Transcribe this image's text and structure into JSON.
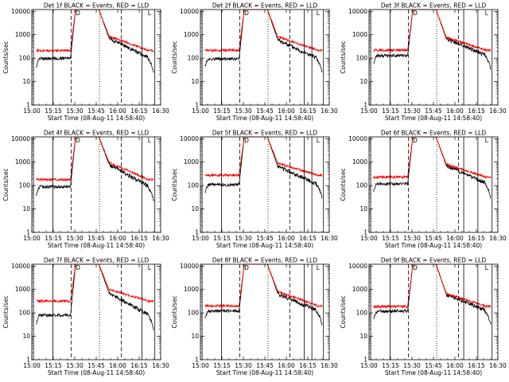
{
  "chart_data": {
    "type": "line",
    "grid": false,
    "x_ticks": [
      "15:00",
      "15:15",
      "15:30",
      "15:45",
      "16:00",
      "16:15",
      "16:30"
    ],
    "x_range_min": [
      0,
      100
    ],
    "y_scale": "log",
    "y_range": [
      1,
      12000
    ],
    "y_ticks": [
      "1",
      "10",
      "100",
      "1000",
      "10000"
    ],
    "ylabel": "Counts/sec",
    "xlabel": "Start Time (08-Aug-11 14:58:40)",
    "flag_letters": [
      "D",
      "L"
    ],
    "solid_lines_min": [
      1.3,
      16.3,
      95.5
    ],
    "dashed_lines_min": [
      30.5,
      69.5
    ],
    "dotted_lines_min": [
      52.5
    ],
    "colors": {
      "events": "#000000",
      "lld": "#ff0000"
    },
    "panels": [
      {
        "title": "Det 1f BLACK = Events, RED = LLD",
        "solid_extra": [
          85.5
        ],
        "base_events": 100,
        "base_lld": 210,
        "post_events": 450,
        "post_lld": 550,
        "peak": 12000
      },
      {
        "title": "Det 2f BLACK = Events, RED = LLD",
        "solid_extra": [
          80.5,
          86.5
        ],
        "base_events": 95,
        "base_lld": 220,
        "post_events": 380,
        "post_lld": 520,
        "peak": 12000
      },
      {
        "title": "Det 3f BLACK = Events, RED = LLD",
        "solid_extra": [
          73.5,
          84.5
        ],
        "base_events": 130,
        "base_lld": 220,
        "post_events": 420,
        "post_lld": 480,
        "peak": 12000
      },
      {
        "title": "Det 4f BLACK = Events, RED = LLD",
        "solid_extra": [
          85.5
        ],
        "base_events": 90,
        "base_lld": 180,
        "post_events": 500,
        "post_lld": 600,
        "peak": 12000
      },
      {
        "title": "Det 5f BLACK = Events, RED = LLD",
        "solid_extra": [
          80.5,
          86.5
        ],
        "base_events": 110,
        "base_lld": 280,
        "post_events": 420,
        "post_lld": 560,
        "peak": 12000
      },
      {
        "title": "Det 6f BLACK = Events, RED = LLD",
        "solid_extra": [
          73.5,
          84.5
        ],
        "base_events": 120,
        "base_lld": 230,
        "post_events": 450,
        "post_lld": 500,
        "peak": 12000
      },
      {
        "title": "Det 7f BLACK = Events, RED = LLD",
        "solid_extra": [
          85.5
        ],
        "base_events": 80,
        "base_lld": 320,
        "post_events": 430,
        "post_lld": 620,
        "peak": 12000
      },
      {
        "title": "Det 8f BLACK = Events, RED = LLD",
        "solid_extra": [
          80.5,
          86.5
        ],
        "base_events": 120,
        "base_lld": 200,
        "post_events": 420,
        "post_lld": 520,
        "peak": 12000
      },
      {
        "title": "Det 9f BLACK = Events, RED = LLD",
        "solid_extra": [
          73.5,
          84.5
        ],
        "base_events": 120,
        "base_lld": 190,
        "post_events": 380,
        "post_lld": 420,
        "peak": 12000
      }
    ]
  }
}
